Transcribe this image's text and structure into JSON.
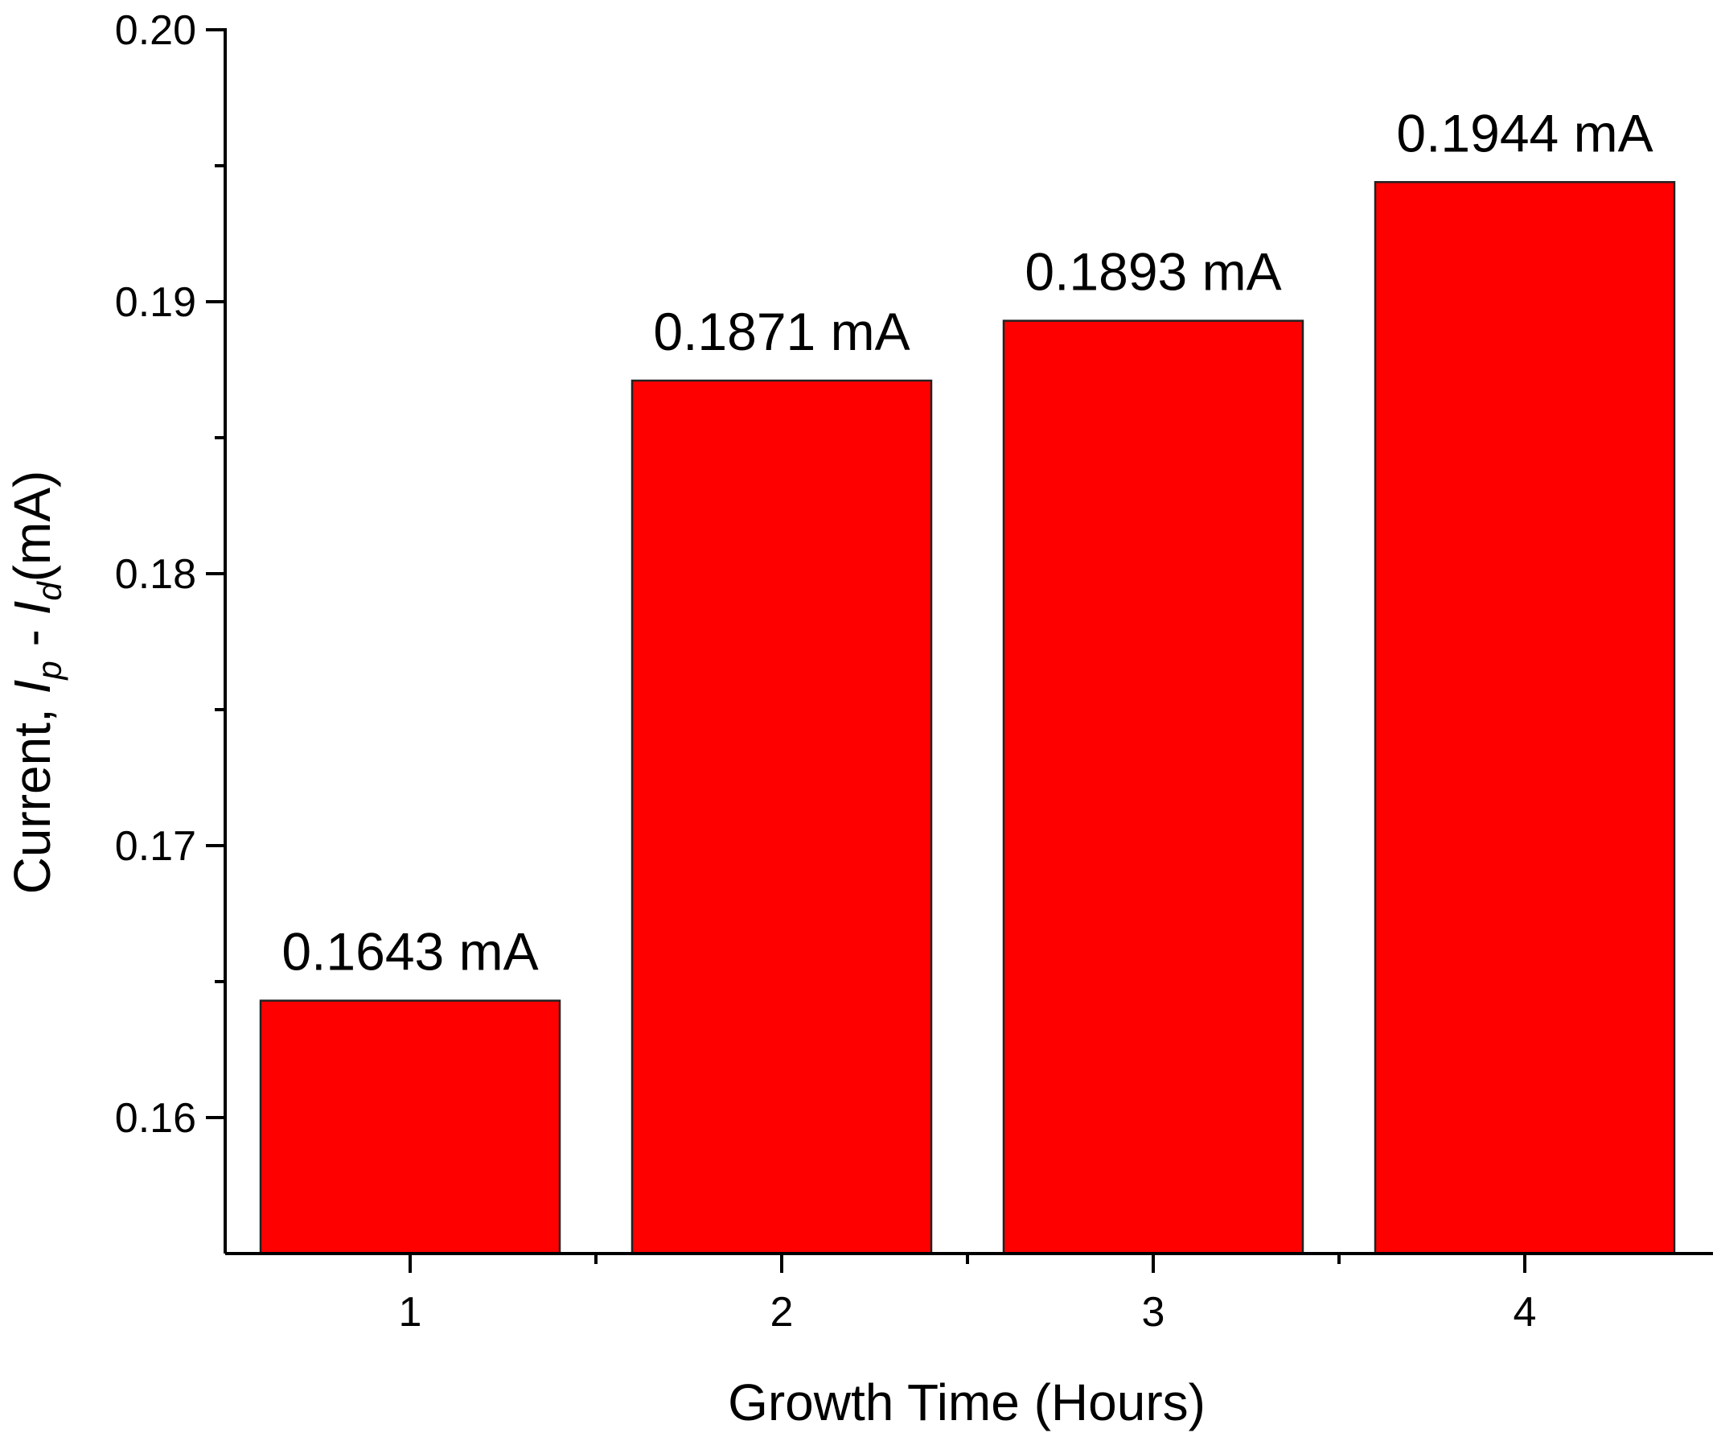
{
  "chart_data": {
    "type": "bar",
    "title": "",
    "categories": [
      "1",
      "2",
      "3",
      "4"
    ],
    "values": [
      0.1643,
      0.1871,
      0.1893,
      0.1944
    ],
    "data_labels": [
      "0.1643 mA",
      "0.1871 mA",
      "0.1893 mA",
      "0.1944 mA"
    ],
    "xlabel": "Growth Time (Hours)",
    "ylabel": {
      "prefix": "Current, ",
      "var1": "I",
      "sub1": "p",
      "mid": " - ",
      "var2": "I",
      "sub2": "d",
      "suffix": "(mA)"
    },
    "ylim": [
      0.155,
      0.2
    ],
    "yticks": [
      "0.16",
      "0.17",
      "0.18",
      "0.19",
      "0.20"
    ],
    "ytick_values": [
      0.16,
      0.17,
      0.18,
      0.19,
      0.2
    ],
    "y_minor_ticks": [
      0.165,
      0.175,
      0.185,
      0.195
    ],
    "grid": false,
    "bar_color": "#ff0000",
    "bar_edge_color": "#222222"
  }
}
